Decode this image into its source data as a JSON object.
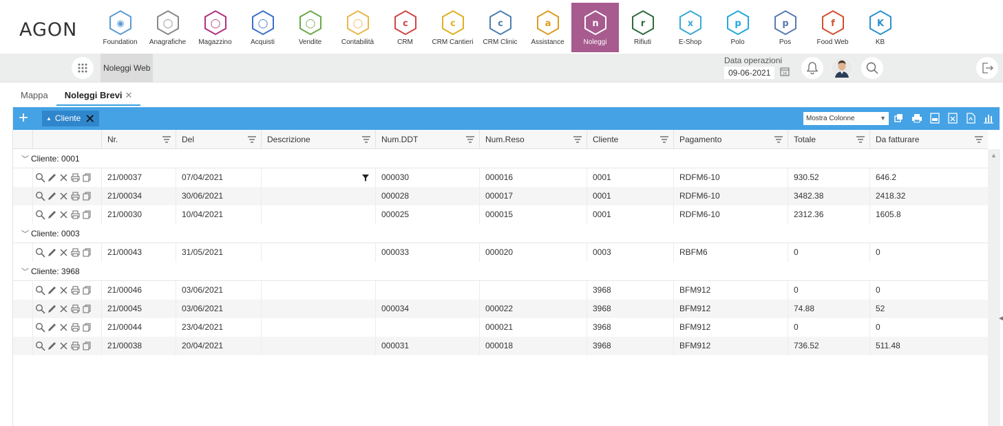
{
  "logo": "AGON",
  "modules": [
    {
      "label": "Foundation",
      "color": "#5b9bd5",
      "glyph": "◉",
      "icon": "foundation-icon"
    },
    {
      "label": "Anagrafiche",
      "color": "#888888",
      "glyph": "◯",
      "icon": "anagrafiche-icon"
    },
    {
      "label": "Magazzino",
      "color": "#b0307a",
      "glyph": "◯",
      "icon": "magazzino-icon"
    },
    {
      "label": "Acquisti",
      "color": "#3a70c8",
      "glyph": "◯",
      "icon": "acquisti-icon"
    },
    {
      "label": "Vendite",
      "color": "#6aaa48",
      "glyph": "◯",
      "icon": "vendite-icon"
    },
    {
      "label": "Contabilità",
      "color": "#e8b84a",
      "glyph": "◯",
      "icon": "contabilita-icon"
    },
    {
      "label": "CRM",
      "color": "#d04545",
      "glyph": "c",
      "icon": "crm-icon"
    },
    {
      "label": "CRM Cantieri",
      "color": "#e0b020",
      "glyph": "c",
      "icon": "crm-cantieri-icon"
    },
    {
      "label": "CRM Clinic",
      "color": "#4a7fb0",
      "glyph": "c",
      "icon": "crm-clinic-icon"
    },
    {
      "label": "Assistance",
      "color": "#e09a20",
      "glyph": "a",
      "icon": "assistance-icon"
    },
    {
      "label": "Noleggi",
      "color": "#ffffff",
      "glyph": "n",
      "icon": "noleggi-icon",
      "active": true
    },
    {
      "label": "Rifiuti",
      "color": "#2e6b3a",
      "glyph": "r",
      "icon": "rifiuti-icon"
    },
    {
      "label": "E-Shop",
      "color": "#3aa8d8",
      "glyph": "x",
      "icon": "eshop-icon"
    },
    {
      "label": "Polo",
      "color": "#22a8e0",
      "glyph": "p",
      "icon": "polo-icon"
    },
    {
      "label": "Pos",
      "color": "#5a7ab0",
      "glyph": "p",
      "icon": "pos-icon"
    },
    {
      "label": "Food Web",
      "color": "#d05030",
      "glyph": "f",
      "icon": "food-web-icon"
    },
    {
      "label": "KB",
      "color": "#2a90d0",
      "glyph": "K",
      "icon": "kb-icon"
    }
  ],
  "secbar": {
    "title": "Noleggi Web",
    "date_label": "Data operazioni",
    "date_value": "09-06-2021"
  },
  "tabs": [
    {
      "label": "Mappa",
      "active": false
    },
    {
      "label": "Noleggi Brevi",
      "active": true,
      "close": "✕"
    }
  ],
  "toolbar": {
    "group_chip": "Cliente",
    "columns_select": "Mostra Colonne"
  },
  "columns": [
    "Nr.",
    "Del",
    "Descrizione",
    "Num.DDT",
    "Num.Reso",
    "Cliente",
    "Pagamento",
    "Totale",
    "Da fatturare"
  ],
  "groups": [
    {
      "label": "Cliente: 0001",
      "rows": [
        [
          "21/00037",
          "07/04/2021",
          "",
          "000030",
          "000016",
          "0001",
          "RDFM6-10",
          "930.52",
          "646.2"
        ],
        [
          "21/00034",
          "30/06/2021",
          "",
          "000028",
          "000017",
          "0001",
          "RDFM6-10",
          "3482.38",
          "2418.32"
        ],
        [
          "21/00030",
          "10/04/2021",
          "",
          "000025",
          "000015",
          "0001",
          "RDFM6-10",
          "2312.36",
          "1605.8"
        ]
      ]
    },
    {
      "label": "Cliente: 0003",
      "rows": [
        [
          "21/00043",
          "31/05/2021",
          "",
          "000033",
          "000020",
          "0003",
          "RBFM6",
          "0",
          "0"
        ]
      ]
    },
    {
      "label": "Cliente: 3968",
      "rows": [
        [
          "21/00046",
          "03/06/2021",
          "",
          "",
          "",
          "3968",
          "BFM912",
          "0",
          "0"
        ],
        [
          "21/00045",
          "03/06/2021",
          "",
          "000034",
          "000022",
          "3968",
          "BFM912",
          "74.88",
          "52"
        ],
        [
          "21/00044",
          "23/04/2021",
          "",
          "",
          "000021",
          "3968",
          "BFM912",
          "0",
          "0"
        ],
        [
          "21/00038",
          "20/04/2021",
          "",
          "000031",
          "000018",
          "3968",
          "BFM912",
          "736.52",
          "511.48"
        ]
      ]
    }
  ],
  "colors": {
    "accent": "#45a2e5",
    "active_module": "#a85b8f"
  }
}
